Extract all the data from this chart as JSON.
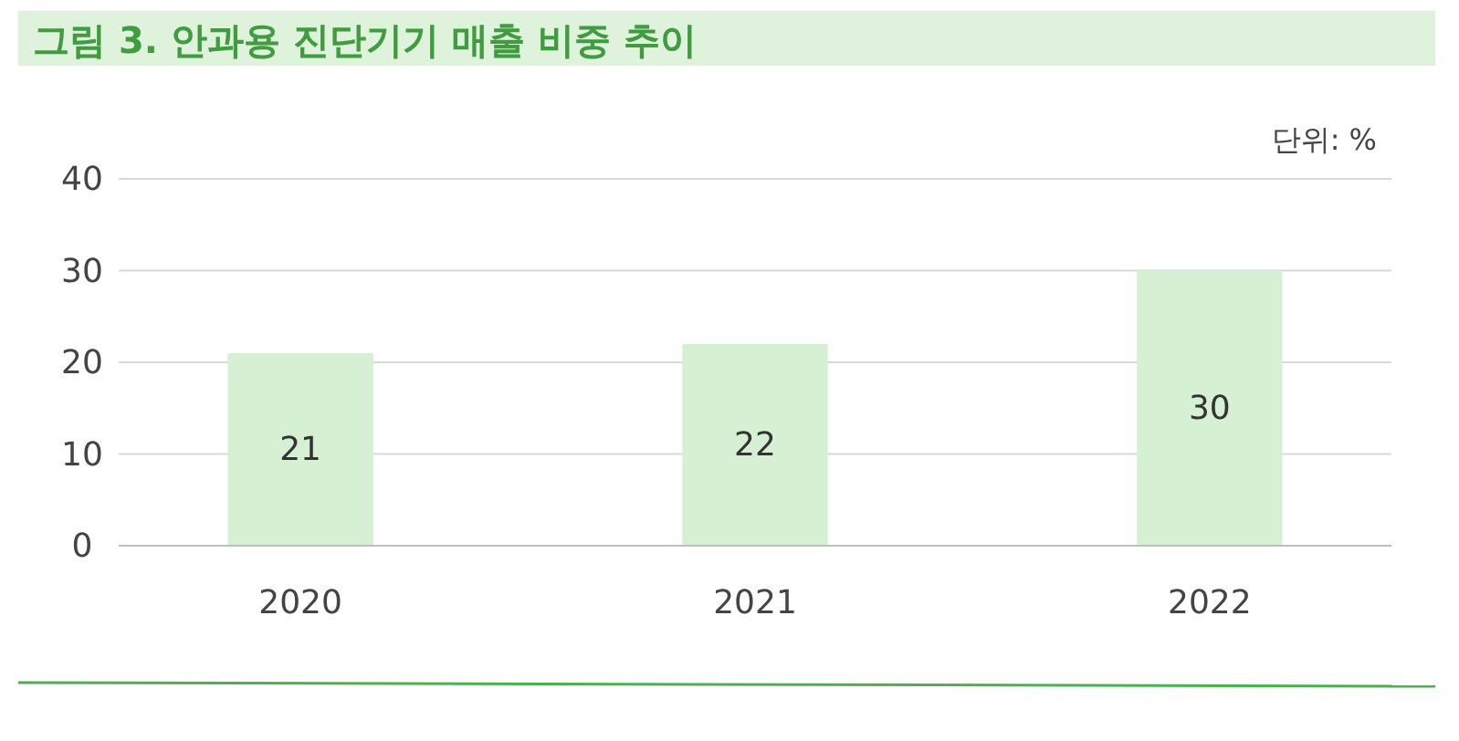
{
  "chart_data": {
    "type": "bar",
    "title": "그림 3. 안과용 진단기기 매출 비중 추이",
    "annotations": [
      "단위: %"
    ],
    "categories": [
      "2020",
      "2021",
      "2022"
    ],
    "values": [
      21,
      22,
      30
    ],
    "color": "#d6f0d4",
    "ylim": [
      0,
      40
    ],
    "yticks": [
      0,
      10,
      20,
      30,
      40
    ],
    "grid": "y",
    "data_labels": true
  }
}
